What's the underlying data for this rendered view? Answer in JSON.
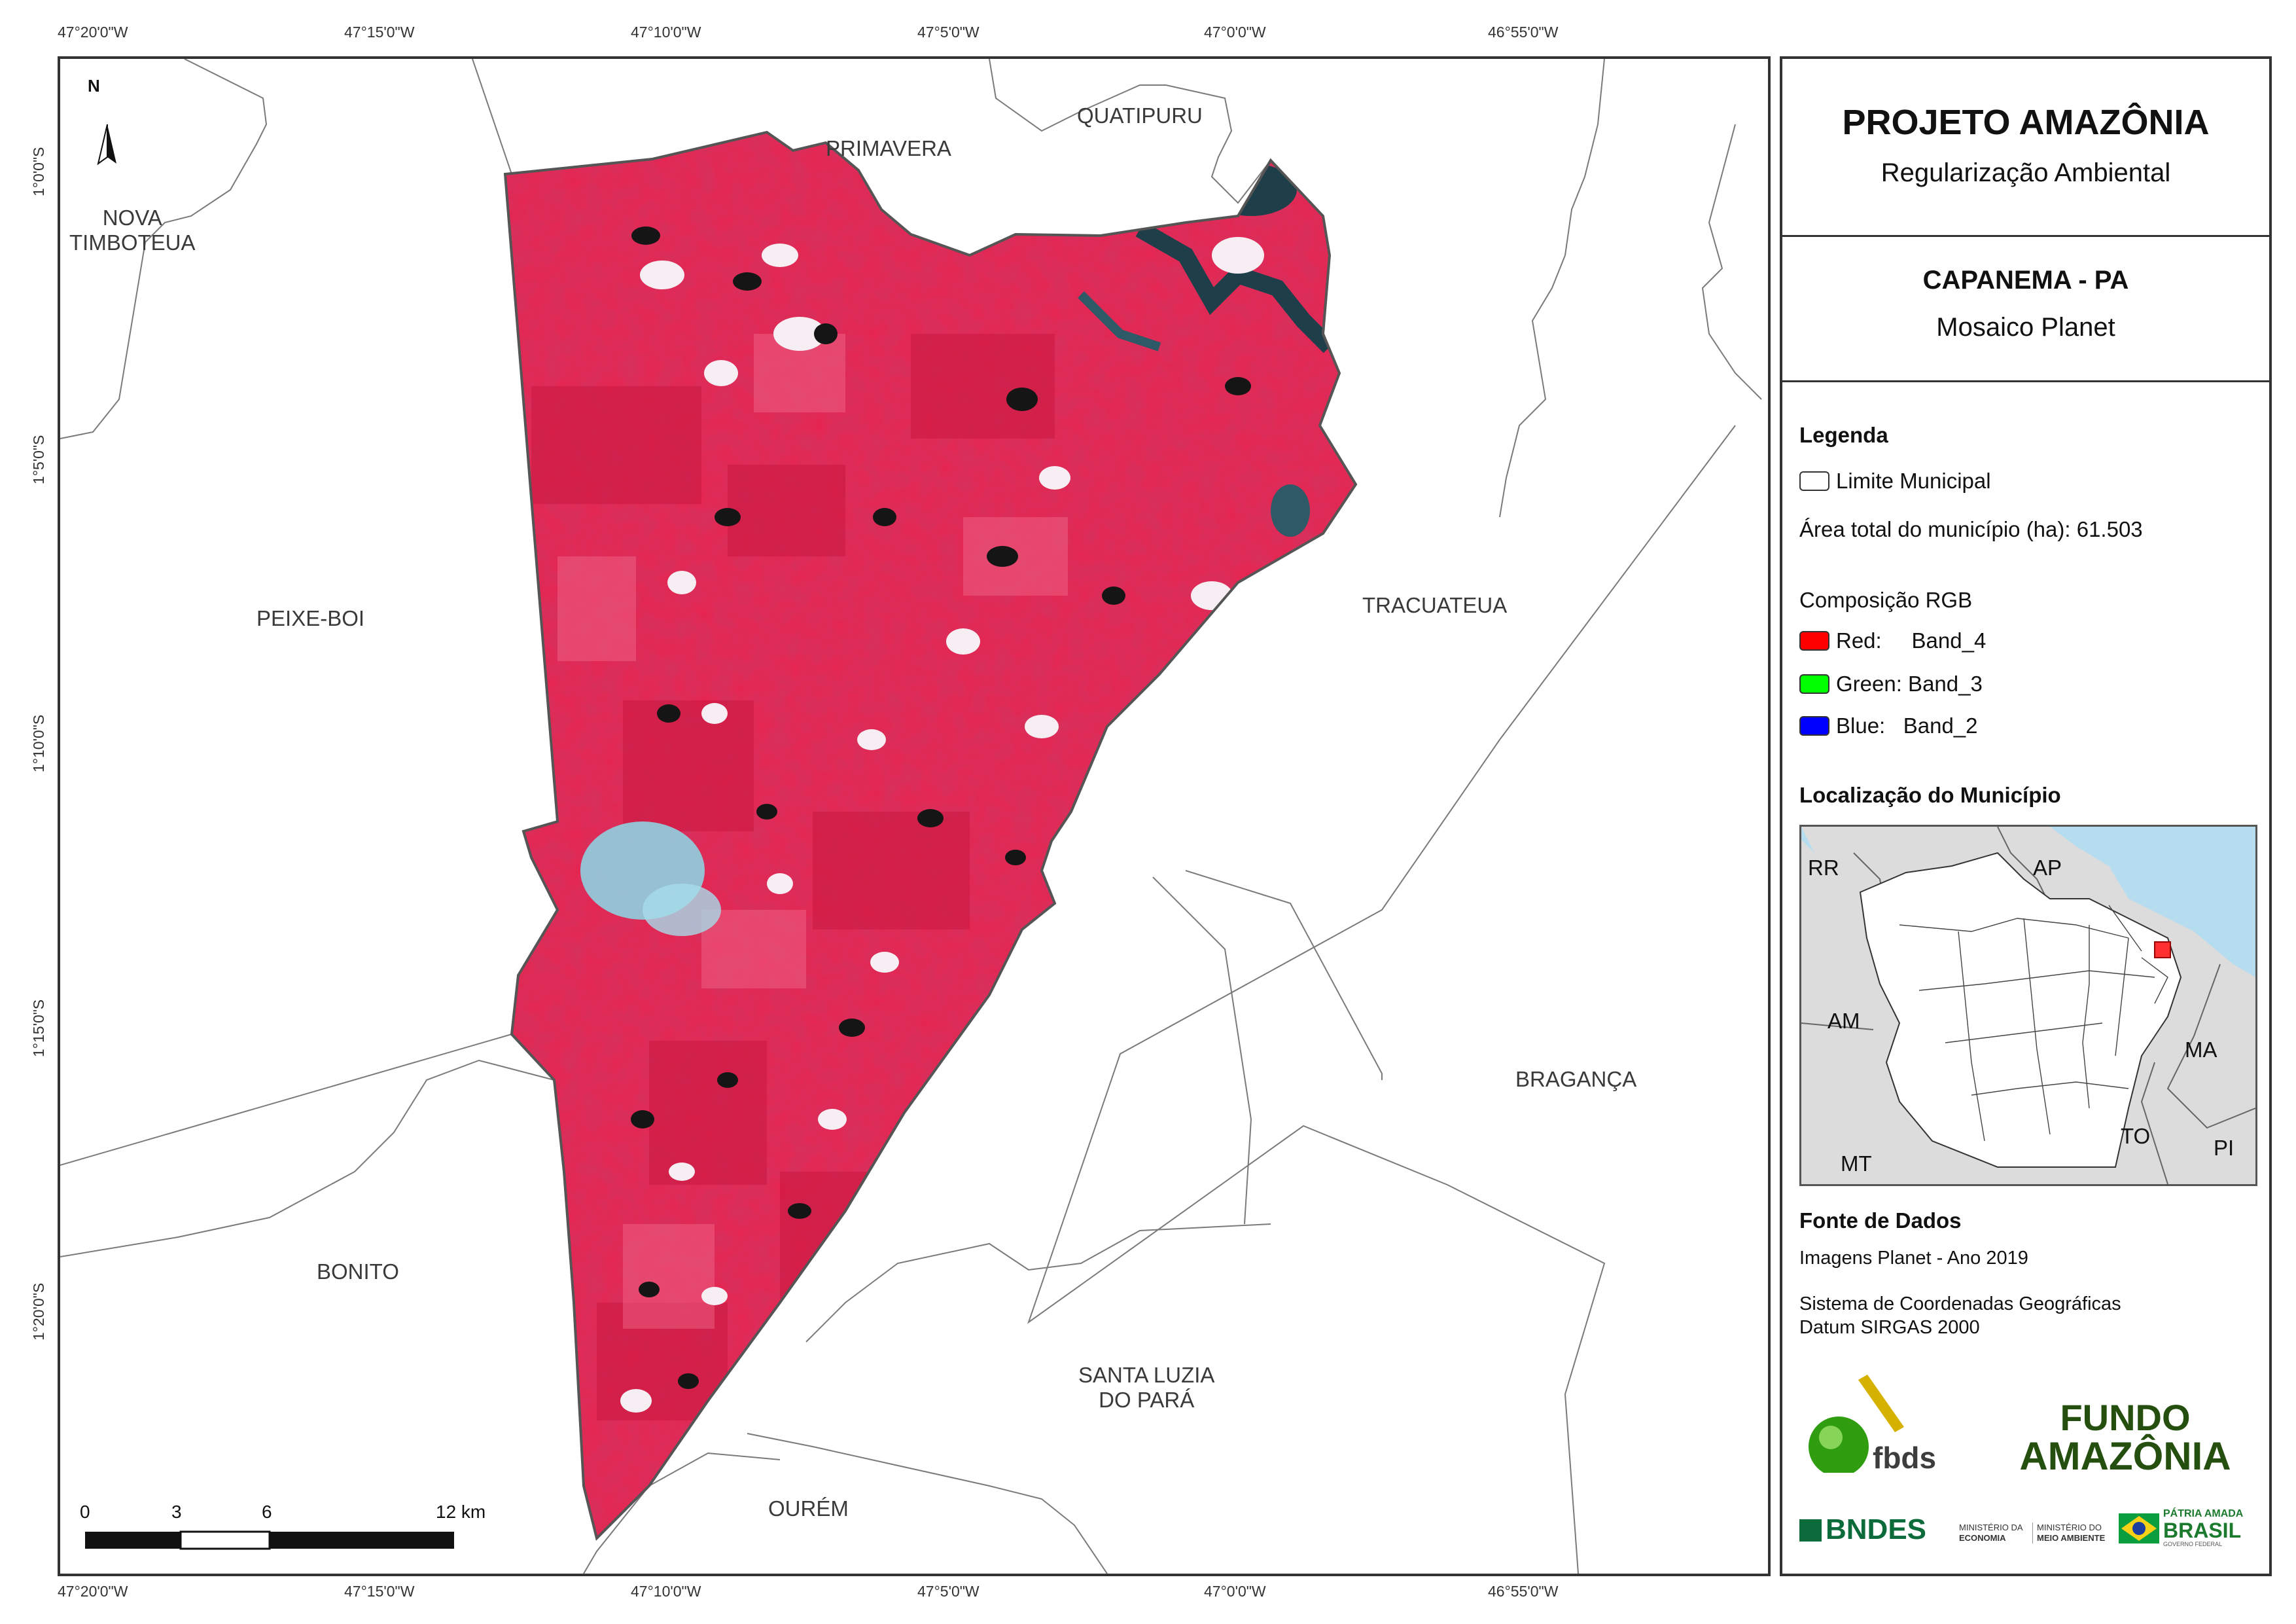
{
  "ticks": {
    "lon": [
      "47°20'0\"W",
      "47°15'0\"W",
      "47°10'0\"W",
      "47°5'0\"W",
      "47°0'0\"W",
      "46°55'0\"W"
    ],
    "lat": [
      "1°0'0\"S",
      "1°5'0\"S",
      "1°10'0\"S",
      "1°15'0\"S",
      "1°20'0\"S"
    ]
  },
  "north_arrow": "N",
  "municipalities": {
    "nova_timboteua": [
      "NOVA",
      "TIMBOTEUA"
    ],
    "primavera": "PRIMAVERA",
    "quatipuru": "QUATIPURU",
    "peixe_boi": "PEIXE-BOI",
    "tracuateua": "TRACUATEUA",
    "braganca": "BRAGANÇA",
    "bonito": "BONITO",
    "santa_luzia": [
      "SANTA LUZIA",
      "DO PARÁ"
    ],
    "ourem": "OURÉM"
  },
  "scale_bar": {
    "labels": [
      "0",
      "3",
      "6",
      "12 km"
    ]
  },
  "panel": {
    "title": "PROJETO AMAZÔNIA",
    "subtitle": "Regularização Ambiental",
    "municipality": "CAPANEMA - PA",
    "product": "Mosaico Planet",
    "legend_heading": "Legenda",
    "limit_label": "Limite Municipal",
    "area_label": "Área total do município (ha): 61.503",
    "rgb_heading": "Composição RGB",
    "bands": [
      {
        "label": "Red:     Band_4",
        "color": "#ff0000"
      },
      {
        "label": "Green: Band_3",
        "color": "#00ff00"
      },
      {
        "label": "Blue:   Band_2",
        "color": "#0000ff"
      }
    ],
    "location_heading": "Localização do Município",
    "inset_states": [
      "RR",
      "AP",
      "AM",
      "MA",
      "TO",
      "MT",
      "PI"
    ],
    "sources_heading": "Fonte de Dados",
    "source_lines": [
      "Imagens Planet - Ano 2019",
      "Sistema de Coordenadas Geográficas",
      "Datum SIRGAS 2000"
    ],
    "logos": {
      "fbds": "fbds",
      "fundo": [
        "FUNDO",
        "AMAZÔNIA"
      ],
      "bndes": "BNDES",
      "ministerio_economia": [
        "MINISTÉRIO DA",
        "ECONOMIA"
      ],
      "ministerio_ambiente": [
        "MINISTÉRIO DO",
        "MEIO AMBIENTE"
      ],
      "patria": [
        "PÁTRIA AMADA",
        "BRASIL",
        "GOVERNO FEDERAL"
      ]
    }
  },
  "colors": {
    "imagery_red": "#e8234f",
    "urban": "#8fd0e0",
    "water": "#1e3f4a",
    "ocean_inset": "#b6dcf0",
    "land_inset": "#dcdcdc",
    "highlight": "#ff0000"
  }
}
